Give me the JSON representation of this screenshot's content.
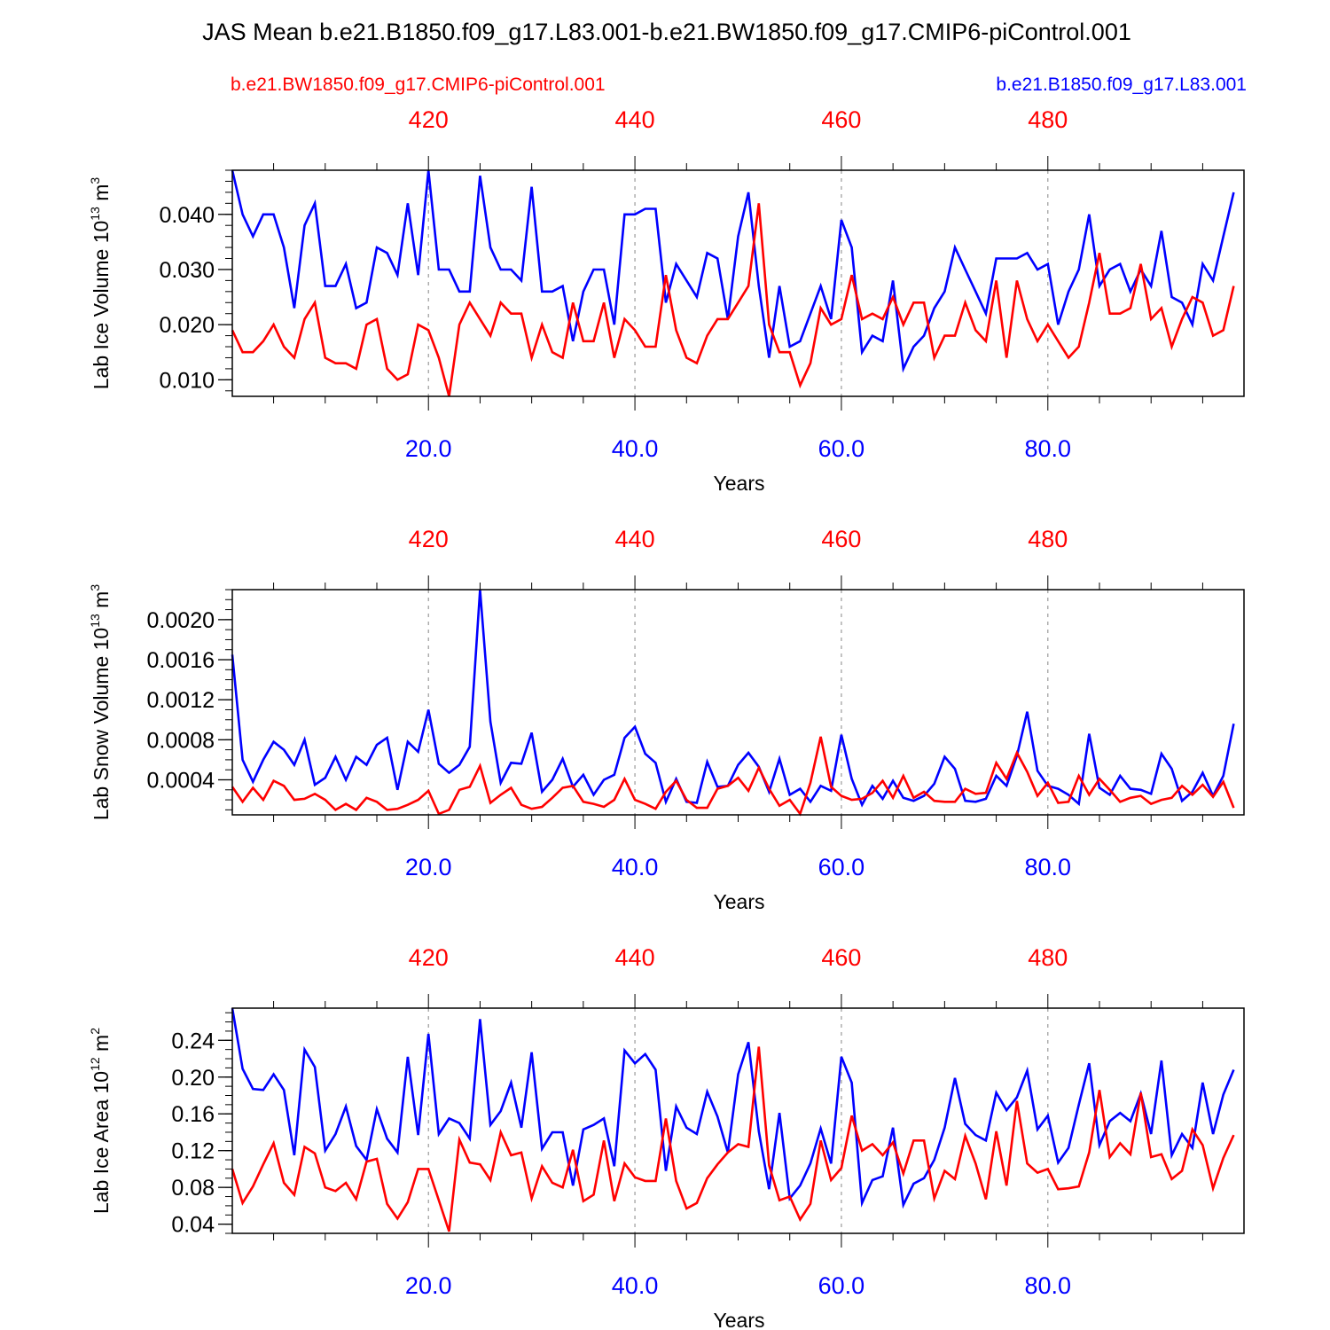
{
  "title": "JAS Mean b.e21.B1850.f09_g17.L83.001-b.e21.BW1850.f09_g17.CMIP6-piControl.001",
  "legend": {
    "left_label": "b.e21.BW1850.f09_g17.CMIP6-piControl.001",
    "right_label": "b.e21.B1850.f09_g17.L83.001"
  },
  "colors": {
    "blue": "#0000ff",
    "red": "#ff0000",
    "grid": "#9a9a9a",
    "axis": "#000000"
  },
  "chart_data": [
    {
      "type": "line",
      "ylabel_main": "Lab Ice Volume 10",
      "ylabel_exp": "13",
      "ylabel_unit": "m",
      "ylabel_unit_exp": "3",
      "xlabel": "Years",
      "xlim": [
        1,
        99
      ],
      "ylim": [
        0.007,
        0.048
      ],
      "yticks": [
        0.01,
        0.02,
        0.03,
        0.04
      ],
      "ytick_labels": [
        "0.010",
        "0.020",
        "0.030",
        "0.040"
      ],
      "minor_step": 0.002,
      "bottom_ticks": [
        20,
        40,
        60,
        80
      ],
      "bottom_tick_labels": [
        "20.0",
        "40.0",
        "60.0",
        "80.0"
      ],
      "top_ticks": [
        20,
        40,
        60,
        80
      ],
      "top_tick_labels": [
        "420",
        "440",
        "460",
        "480"
      ],
      "series": [
        {
          "name": "b.e21.B1850.f09_g17.L83.001",
          "color": "blue",
          "values": [
            0.048,
            0.04,
            0.036,
            0.04,
            0.04,
            0.034,
            0.023,
            0.038,
            0.042,
            0.027,
            0.027,
            0.031,
            0.023,
            0.024,
            0.034,
            0.033,
            0.029,
            0.042,
            0.029,
            0.048,
            0.03,
            0.03,
            0.026,
            0.026,
            0.047,
            0.034,
            0.03,
            0.03,
            0.028,
            0.045,
            0.026,
            0.026,
            0.027,
            0.017,
            0.026,
            0.03,
            0.03,
            0.02,
            0.04,
            0.04,
            0.041,
            0.041,
            0.024,
            0.031,
            0.028,
            0.025,
            0.033,
            0.032,
            0.021,
            0.036,
            0.044,
            0.027,
            0.014,
            0.027,
            0.016,
            0.017,
            0.022,
            0.027,
            0.021,
            0.039,
            0.034,
            0.015,
            0.018,
            0.017,
            0.028,
            0.012,
            0.016,
            0.018,
            0.023,
            0.026,
            0.034,
            0.03,
            0.026,
            0.022,
            0.032,
            0.032,
            0.032,
            0.033,
            0.03,
            0.031,
            0.02,
            0.026,
            0.03,
            0.04,
            0.027,
            0.03,
            0.031,
            0.026,
            0.03,
            0.027,
            0.037,
            0.025,
            0.024,
            0.02,
            0.031,
            0.028,
            0.036,
            0.044
          ]
        },
        {
          "name": "b.e21.BW1850.f09_g17.CMIP6-piControl.001",
          "color": "red",
          "values": [
            0.019,
            0.015,
            0.015,
            0.017,
            0.02,
            0.016,
            0.014,
            0.021,
            0.024,
            0.014,
            0.013,
            0.013,
            0.012,
            0.02,
            0.021,
            0.012,
            0.01,
            0.011,
            0.02,
            0.019,
            0.014,
            0.007,
            0.02,
            0.024,
            0.021,
            0.018,
            0.024,
            0.022,
            0.022,
            0.014,
            0.02,
            0.015,
            0.014,
            0.024,
            0.017,
            0.017,
            0.024,
            0.014,
            0.021,
            0.019,
            0.016,
            0.016,
            0.029,
            0.019,
            0.014,
            0.013,
            0.018,
            0.021,
            0.021,
            0.024,
            0.027,
            0.042,
            0.02,
            0.015,
            0.015,
            0.009,
            0.013,
            0.023,
            0.02,
            0.021,
            0.029,
            0.021,
            0.022,
            0.021,
            0.025,
            0.02,
            0.024,
            0.024,
            0.014,
            0.018,
            0.018,
            0.024,
            0.019,
            0.017,
            0.028,
            0.014,
            0.028,
            0.021,
            0.017,
            0.02,
            0.017,
            0.014,
            0.016,
            0.024,
            0.033,
            0.022,
            0.022,
            0.023,
            0.031,
            0.021,
            0.023,
            0.016,
            0.021,
            0.025,
            0.024,
            0.018,
            0.019,
            0.027
          ]
        }
      ]
    },
    {
      "type": "line",
      "ylabel_main": "Lab Snow Volume 10",
      "ylabel_exp": "13",
      "ylabel_unit": "m",
      "ylabel_unit_exp": "3",
      "xlabel": "Years",
      "xlim": [
        1,
        99
      ],
      "ylim": [
        5e-05,
        0.0023
      ],
      "yticks": [
        0.0004,
        0.0008,
        0.0012,
        0.0016,
        0.002
      ],
      "ytick_labels": [
        "0.0004",
        "0.0008",
        "0.0012",
        "0.0016",
        "0.0020"
      ],
      "minor_step": 0.0001,
      "bottom_ticks": [
        20,
        40,
        60,
        80
      ],
      "bottom_tick_labels": [
        "20.0",
        "40.0",
        "60.0",
        "80.0"
      ],
      "top_ticks": [
        20,
        40,
        60,
        80
      ],
      "top_tick_labels": [
        "420",
        "440",
        "460",
        "480"
      ],
      "series": [
        {
          "name": "b.e21.B1850.f09_g17.L83.001",
          "color": "blue",
          "values": [
            0.00165,
            0.0006,
            0.00038,
            0.0006,
            0.00078,
            0.0007,
            0.00055,
            0.0008,
            0.00035,
            0.00042,
            0.00063,
            0.0004,
            0.00063,
            0.00055,
            0.00075,
            0.00082,
            0.0003,
            0.00078,
            0.00068,
            0.0011,
            0.00056,
            0.00047,
            0.00055,
            0.00073,
            0.0023,
            0.00098,
            0.00037,
            0.00057,
            0.00056,
            0.00087,
            0.00028,
            0.0004,
            0.00061,
            0.00033,
            0.00045,
            0.00025,
            0.0004,
            0.00045,
            0.00082,
            0.00093,
            0.00066,
            0.00057,
            0.00018,
            0.00041,
            0.00018,
            0.00017,
            0.00058,
            0.00033,
            0.00034,
            0.00055,
            0.00067,
            0.00053,
            0.00028,
            0.00061,
            0.00025,
            0.00031,
            0.00018,
            0.00034,
            0.00029,
            0.00085,
            0.00041,
            0.00015,
            0.00034,
            0.00021,
            0.00039,
            0.00022,
            0.00019,
            0.00024,
            0.00036,
            0.00063,
            0.00051,
            0.00019,
            0.00018,
            0.00021,
            0.00044,
            0.00034,
            0.00064,
            0.00108,
            0.00049,
            0.00034,
            0.00031,
            0.00025,
            0.00016,
            0.00086,
            0.00032,
            0.00025,
            0.00044,
            0.00031,
            0.0003,
            0.00026,
            0.00066,
            0.00051,
            0.00019,
            0.00028,
            0.00047,
            0.00024,
            0.00044,
            0.00096
          ]
        },
        {
          "name": "b.e21.BW1850.f09_g17.CMIP6-piControl.001",
          "color": "red",
          "values": [
            0.00033,
            0.00018,
            0.00032,
            0.0002,
            0.00039,
            0.00034,
            0.0002,
            0.00021,
            0.00026,
            0.0002,
            0.0001,
            0.00016,
            0.0001,
            0.00022,
            0.00018,
            0.0001,
            0.00011,
            0.00015,
            0.0002,
            0.00029,
            6e-05,
            0.0001,
            0.0003,
            0.00033,
            0.00054,
            0.00017,
            0.00025,
            0.00032,
            0.00015,
            0.00011,
            0.00013,
            0.00022,
            0.00032,
            0.00034,
            0.00018,
            0.00016,
            0.00013,
            0.0002,
            0.00041,
            0.0002,
            0.00016,
            0.00011,
            0.00028,
            0.00039,
            0.0002,
            0.00012,
            0.00012,
            0.00031,
            0.00034,
            0.00042,
            0.00029,
            0.00052,
            0.00031,
            0.00014,
            0.0002,
            6e-05,
            0.00037,
            0.00083,
            0.00033,
            0.00024,
            0.0002,
            0.00021,
            0.00027,
            0.00039,
            0.00022,
            0.00044,
            0.00022,
            0.00028,
            0.00019,
            0.00018,
            0.00018,
            0.00031,
            0.00026,
            0.00027,
            0.00057,
            0.00041,
            0.00067,
            0.00048,
            0.00024,
            0.00037,
            0.00017,
            0.00018,
            0.00044,
            0.00025,
            0.00041,
            0.0003,
            0.00018,
            0.00022,
            0.00024,
            0.00016,
            0.0002,
            0.00022,
            0.00034,
            0.00025,
            0.00035,
            0.00023,
            0.00038,
            0.00012
          ]
        }
      ]
    },
    {
      "type": "line",
      "ylabel_main": "Lab Ice Area 10",
      "ylabel_exp": "12",
      "ylabel_unit": "m",
      "ylabel_unit_exp": "2",
      "xlabel": "Years",
      "xlim": [
        1,
        99
      ],
      "ylim": [
        0.03,
        0.275
      ],
      "yticks": [
        0.04,
        0.08,
        0.12,
        0.16,
        0.2,
        0.24
      ],
      "ytick_labels": [
        "0.04",
        "0.08",
        "0.12",
        "0.16",
        "0.20",
        "0.24"
      ],
      "minor_step": 0.01,
      "bottom_ticks": [
        20,
        40,
        60,
        80
      ],
      "bottom_tick_labels": [
        "20.0",
        "40.0",
        "60.0",
        "80.0"
      ],
      "top_ticks": [
        20,
        40,
        60,
        80
      ],
      "top_tick_labels": [
        "420",
        "440",
        "460",
        "480"
      ],
      "series": [
        {
          "name": "b.e21.B1850.f09_g17.L83.001",
          "color": "blue",
          "values": [
            0.275,
            0.209,
            0.187,
            0.186,
            0.203,
            0.186,
            0.115,
            0.23,
            0.211,
            0.12,
            0.138,
            0.168,
            0.125,
            0.11,
            0.165,
            0.133,
            0.118,
            0.222,
            0.137,
            0.247,
            0.138,
            0.155,
            0.15,
            0.133,
            0.263,
            0.148,
            0.163,
            0.194,
            0.145,
            0.227,
            0.122,
            0.14,
            0.14,
            0.082,
            0.143,
            0.148,
            0.155,
            0.103,
            0.229,
            0.215,
            0.225,
            0.208,
            0.098,
            0.168,
            0.145,
            0.138,
            0.184,
            0.157,
            0.118,
            0.203,
            0.238,
            0.141,
            0.078,
            0.161,
            0.068,
            0.082,
            0.106,
            0.144,
            0.106,
            0.222,
            0.194,
            0.063,
            0.088,
            0.092,
            0.145,
            0.061,
            0.084,
            0.09,
            0.11,
            0.145,
            0.199,
            0.149,
            0.137,
            0.131,
            0.183,
            0.164,
            0.178,
            0.207,
            0.143,
            0.158,
            0.107,
            0.123,
            0.17,
            0.215,
            0.126,
            0.152,
            0.161,
            0.152,
            0.182,
            0.138,
            0.218,
            0.115,
            0.138,
            0.123,
            0.194,
            0.138,
            0.181,
            0.208
          ]
        },
        {
          "name": "b.e21.BW1850.f09_g17.CMIP6-piControl.001",
          "color": "red",
          "values": [
            0.1,
            0.063,
            0.081,
            0.105,
            0.128,
            0.085,
            0.072,
            0.124,
            0.117,
            0.08,
            0.076,
            0.085,
            0.067,
            0.108,
            0.111,
            0.062,
            0.046,
            0.064,
            0.1,
            0.1,
            0.066,
            0.032,
            0.132,
            0.107,
            0.105,
            0.088,
            0.14,
            0.115,
            0.118,
            0.068,
            0.103,
            0.085,
            0.08,
            0.121,
            0.065,
            0.072,
            0.131,
            0.065,
            0.106,
            0.091,
            0.087,
            0.087,
            0.155,
            0.087,
            0.057,
            0.063,
            0.09,
            0.105,
            0.118,
            0.127,
            0.124,
            0.233,
            0.104,
            0.066,
            0.07,
            0.045,
            0.062,
            0.131,
            0.088,
            0.101,
            0.158,
            0.12,
            0.127,
            0.115,
            0.129,
            0.095,
            0.131,
            0.131,
            0.068,
            0.098,
            0.089,
            0.136,
            0.106,
            0.067,
            0.141,
            0.082,
            0.174,
            0.106,
            0.096,
            0.1,
            0.078,
            0.079,
            0.081,
            0.118,
            0.186,
            0.113,
            0.128,
            0.116,
            0.183,
            0.113,
            0.116,
            0.089,
            0.098,
            0.143,
            0.126,
            0.079,
            0.112,
            0.137
          ]
        }
      ]
    }
  ]
}
